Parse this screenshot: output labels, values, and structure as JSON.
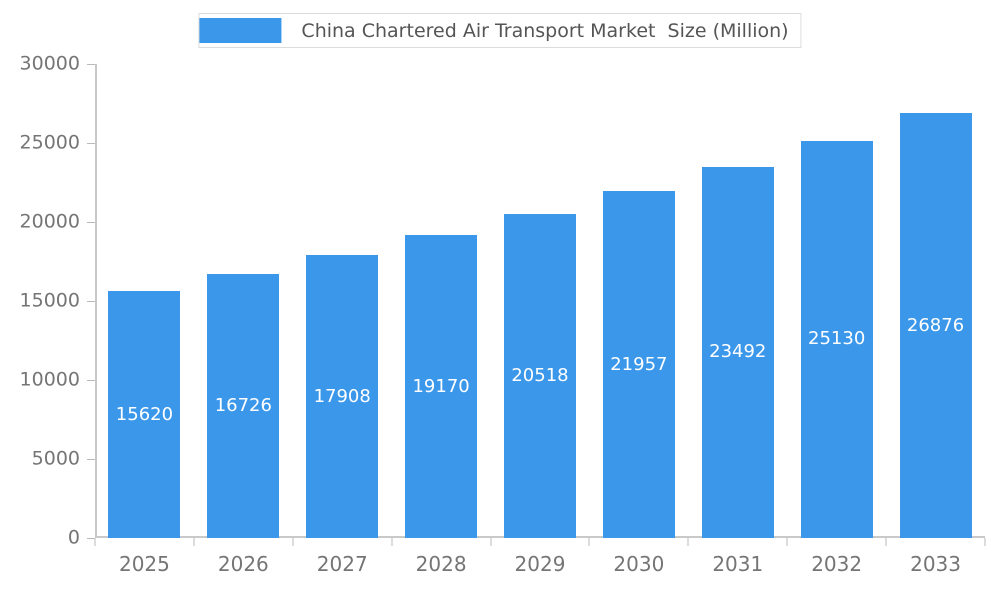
{
  "chart_data": {
    "type": "bar",
    "title": "China Chartered Air Transport Market  Size (Million)",
    "categories": [
      "2025",
      "2026",
      "2027",
      "2028",
      "2029",
      "2030",
      "2031",
      "2032",
      "2033"
    ],
    "values": [
      15620,
      16726,
      17908,
      19170,
      20518,
      21957,
      23492,
      25130,
      26876
    ],
    "xlabel": "",
    "ylabel": "",
    "ylim": [
      0,
      30000
    ],
    "yticks": [
      0,
      5000,
      10000,
      15000,
      20000,
      25000,
      30000
    ],
    "grid": false,
    "legend_position": "top",
    "colors": {
      "bar": "#3B97EA",
      "bar_value_text": "#ffffff",
      "axis": "#c9c9c9",
      "tick_text": "#757575",
      "title_text": "#555555"
    }
  }
}
